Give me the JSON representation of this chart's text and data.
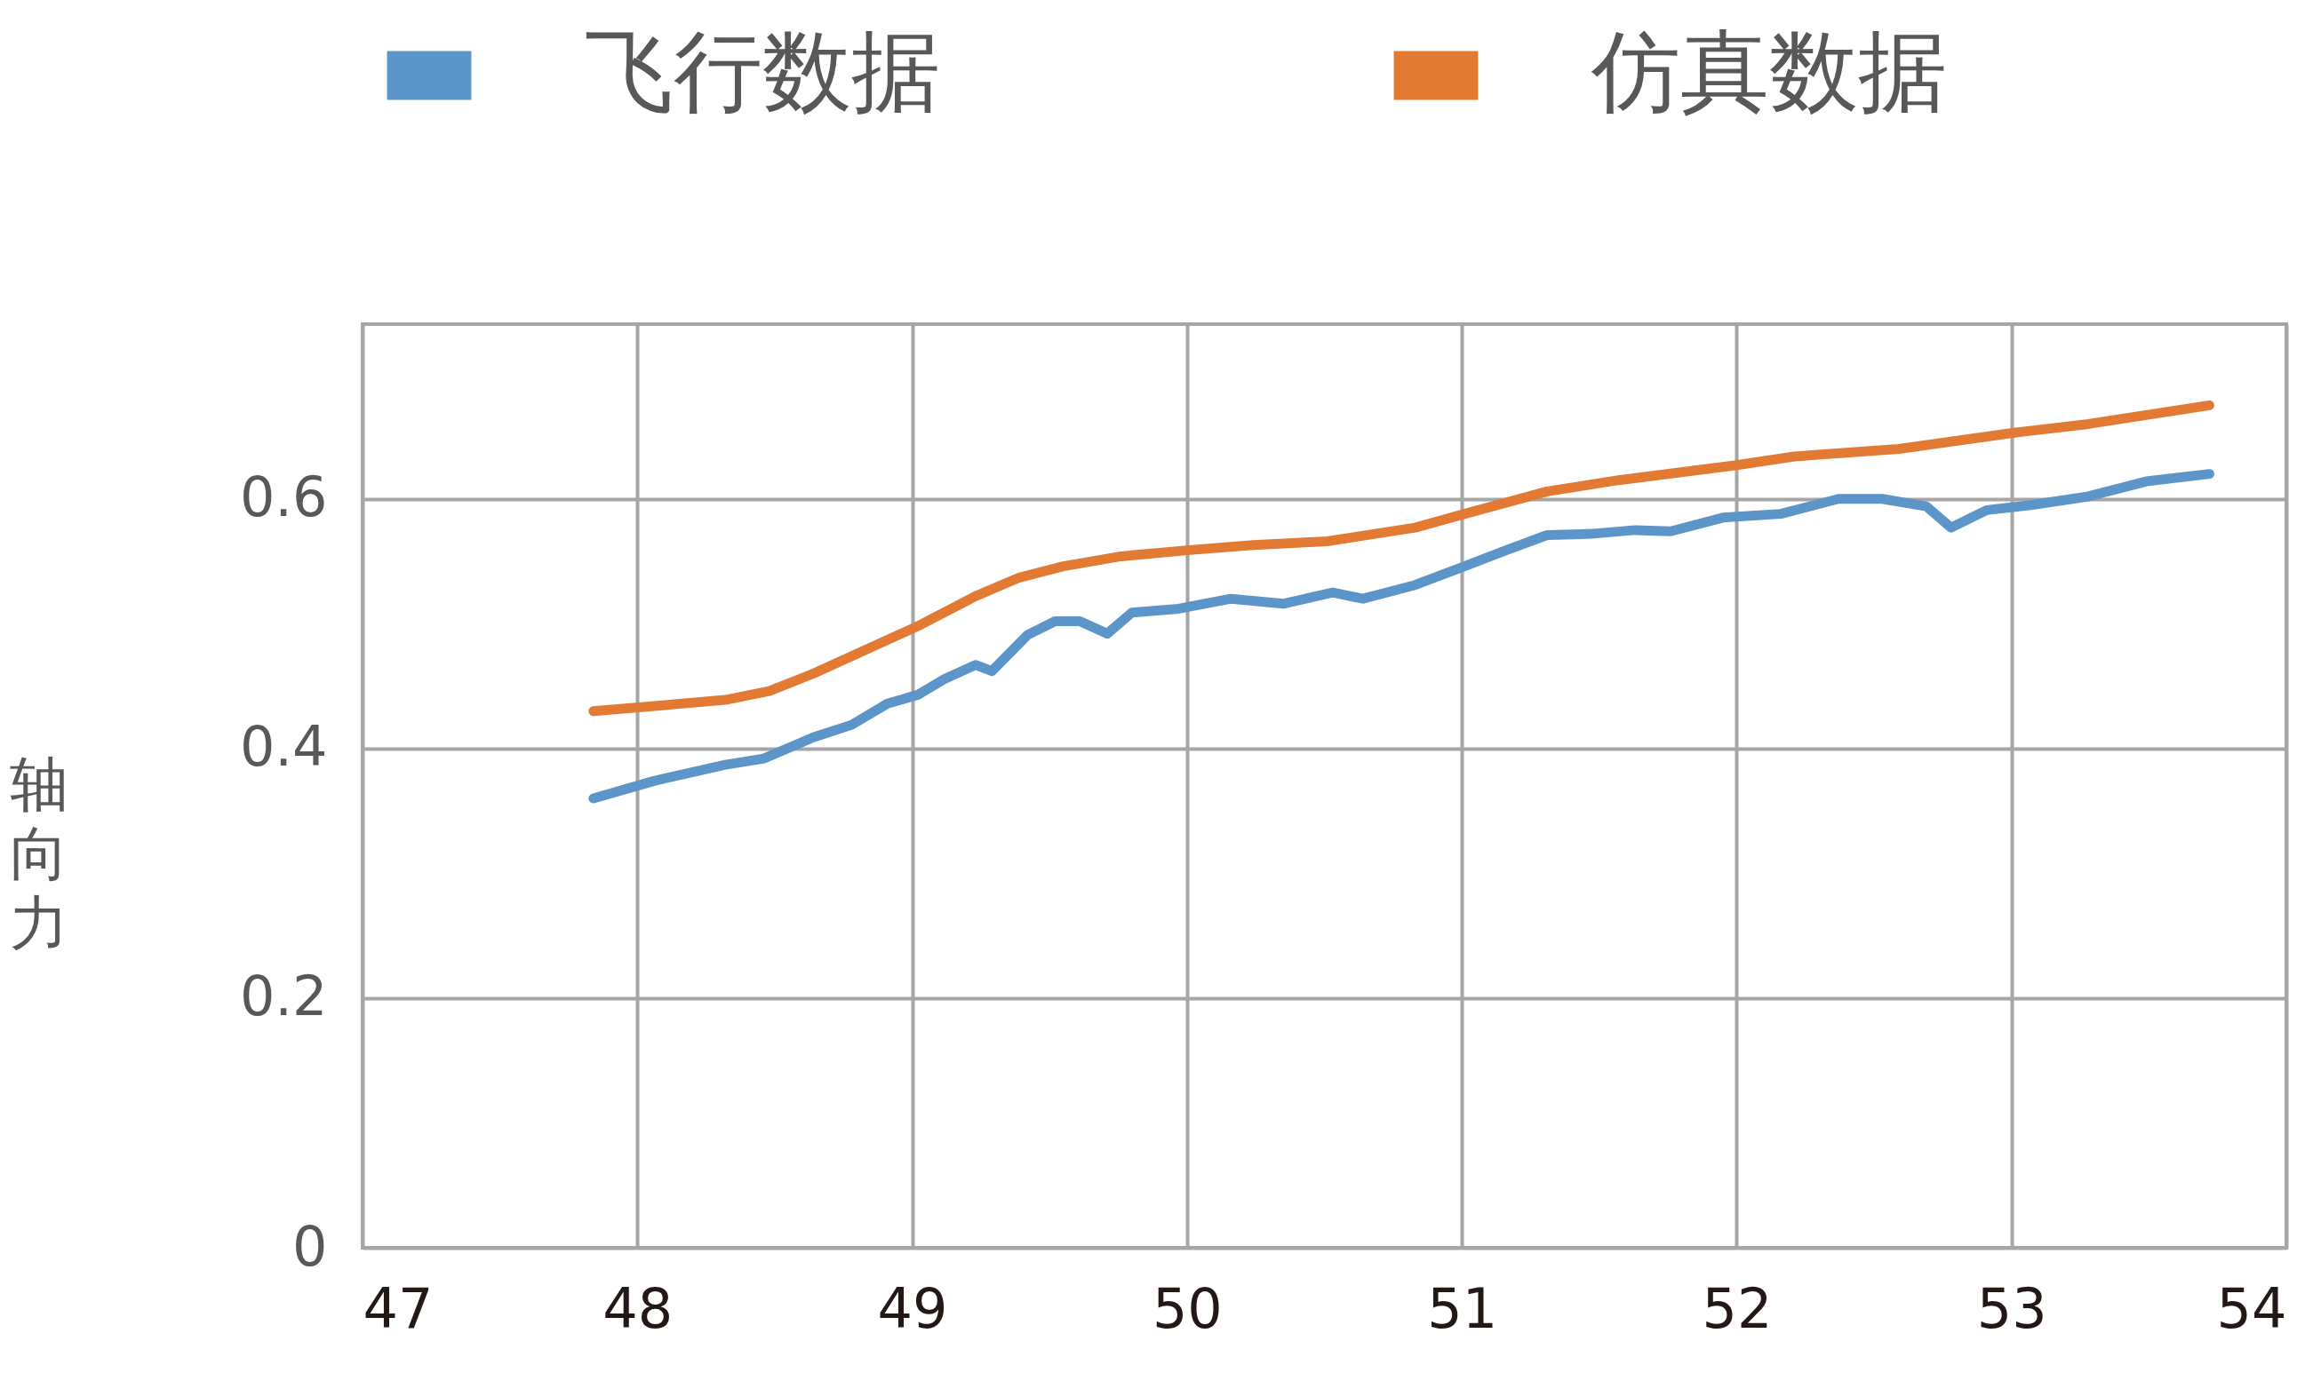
{
  "chart_data": {
    "type": "line",
    "ylabel": "轴向力",
    "legend": "top",
    "grid": true,
    "marker": "none",
    "line_style": "solid",
    "xlim": [
      47,
      54
    ],
    "xticks": [
      47,
      48,
      49,
      50,
      51,
      52,
      53,
      54
    ],
    "ylim": [
      0,
      0.74
    ],
    "yticks": [
      0,
      0.2,
      0.4,
      0.6
    ],
    "series": [
      {
        "name": "飞行数据",
        "color": "#5b95c9",
        "x": [
          47.84,
          48.06,
          48.32,
          48.46,
          48.64,
          48.78,
          48.91,
          49.02,
          49.12,
          49.23,
          49.29,
          49.42,
          49.52,
          49.61,
          49.71,
          49.8,
          49.97,
          50.16,
          50.35,
          50.53,
          50.64,
          50.83,
          51.01,
          51.15,
          51.31,
          51.47,
          51.63,
          51.76,
          51.95,
          52.16,
          52.37,
          52.53,
          52.69,
          52.78,
          52.91,
          53.07,
          53.28,
          53.49,
          53.72
        ],
        "values": [
          0.36,
          0.374,
          0.387,
          0.392,
          0.409,
          0.419,
          0.436,
          0.443,
          0.456,
          0.467,
          0.462,
          0.491,
          0.502,
          0.502,
          0.492,
          0.509,
          0.512,
          0.52,
          0.516,
          0.525,
          0.52,
          0.531,
          0.546,
          0.558,
          0.571,
          0.572,
          0.575,
          0.574,
          0.585,
          0.588,
          0.6,
          0.6,
          0.594,
          0.577,
          0.591,
          0.595,
          0.602,
          0.614,
          0.62
        ]
      },
      {
        "name": "仿真数据",
        "color": "#e27a33",
        "x": [
          47.84,
          48.11,
          48.32,
          48.48,
          48.64,
          48.8,
          49.02,
          49.23,
          49.39,
          49.55,
          49.76,
          50.01,
          50.24,
          50.51,
          50.83,
          51.01,
          51.31,
          51.57,
          52.0,
          52.21,
          52.59,
          53.01,
          53.28,
          53.72
        ],
        "values": [
          0.43,
          0.435,
          0.439,
          0.446,
          0.46,
          0.476,
          0.498,
          0.522,
          0.537,
          0.546,
          0.554,
          0.559,
          0.563,
          0.566,
          0.577,
          0.588,
          0.606,
          0.615,
          0.627,
          0.634,
          0.64,
          0.653,
          0.66,
          0.675
        ]
      }
    ]
  }
}
